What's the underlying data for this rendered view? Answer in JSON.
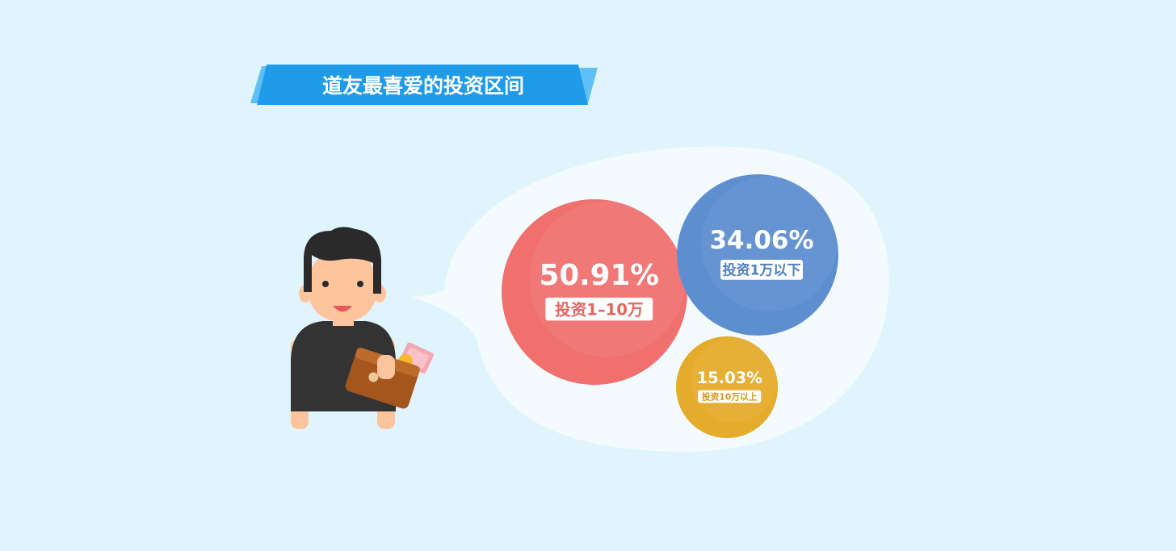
{
  "title": "道友最喜爱的投资区间",
  "colors": {
    "background": "#e0f4fd",
    "ribbon": "#1f9bea",
    "ribbon_light": "#5fc0f5",
    "speech_bubble": "#f3fbff"
  },
  "chart_data": {
    "type": "bubble",
    "title": "道友最喜爱的投资区间",
    "unit": "%",
    "items": [
      {
        "value": 50.91,
        "value_label": "50.91%",
        "label": "投资1–10万",
        "color": "#f0706e",
        "label_color": "#e8655f"
      },
      {
        "value": 34.06,
        "value_label": "34.06%",
        "label": "投资1万以下",
        "color": "#5d8ed0",
        "label_color": "#4f7fc2"
      },
      {
        "value": 15.03,
        "value_label": "15.03%",
        "label": "投资10万以上",
        "color": "#e5ab2a",
        "label_color": "#d49a18"
      }
    ]
  },
  "illustration": {
    "character": "person-with-wallet",
    "wallet_icon": "wallet-icon",
    "money_icon": "banknote-icon",
    "coin_icon": "coin-icon"
  }
}
